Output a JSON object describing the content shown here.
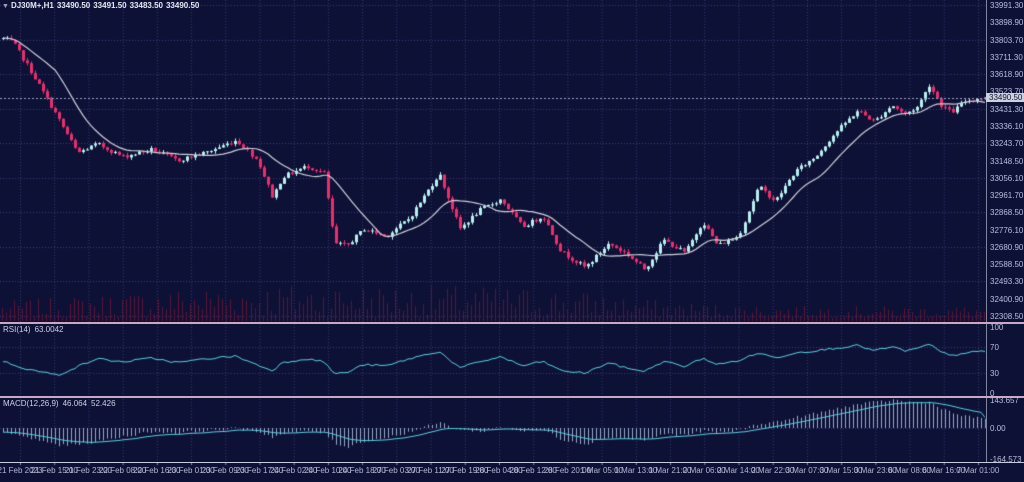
{
  "header": {
    "symbol": "DJ30M+,H1",
    "open": "33490.50",
    "high": "33491.50",
    "low": "33483.50",
    "close": "33490.50"
  },
  "panes": {
    "price": {
      "y_labels": [
        "33991.30",
        "33898.90",
        "33803.70",
        "33711.30",
        "33618.90",
        "33523.70",
        "33431.30",
        "33336.10",
        "33243.70",
        "33148.50",
        "33056.10",
        "32961.70",
        "32868.50",
        "32776.10",
        "32680.90",
        "32588.50",
        "32493.30",
        "32400.90",
        "32308.50"
      ],
      "current_price": "33490.50"
    },
    "rsi": {
      "name": "RSI(14)",
      "value": "63.0042",
      "y_labels": [
        "100",
        "70",
        "30",
        "0"
      ]
    },
    "macd": {
      "name": "MACD(12,26,9)",
      "macd_value": "46.064",
      "signal_value": "52.426",
      "y_labels": [
        "143.657",
        "0.00",
        "-164.573"
      ]
    }
  },
  "time_axis": {
    "labels": [
      "21 Feb 2023",
      "21 Feb 15:00",
      "21 Feb 23:00",
      "22 Feb 08:00",
      "22 Feb 16:00",
      "23 Feb 01:00",
      "23 Feb 09:00",
      "23 Feb 17:00",
      "24 Feb 02:00",
      "24 Feb 10:00",
      "24 Feb 18:00",
      "27 Feb 03:00",
      "27 Feb 11:00",
      "27 Feb 19:00",
      "28 Feb 04:00",
      "28 Feb 12:00",
      "28 Feb 20:00",
      "1 Mar 05:00",
      "1 Mar 13:00",
      "1 Mar 21:00",
      "2 Mar 06:00",
      "2 Mar 14:00",
      "2 Mar 22:00",
      "3 Mar 07:00",
      "3 Mar 15:00",
      "3 Mar 23:00",
      "6 Mar 08:00",
      "6 Mar 16:00",
      "7 Mar 01:00"
    ]
  },
  "colors": {
    "background": "#0e1136",
    "grid": "#343b70",
    "bull_candle": "#b9efef",
    "bear_candle": "#ea2e6d",
    "ma_line": "#cdd0da",
    "volume": "#5d1535",
    "rsi_line": "#57d0e0",
    "macd_histogram": "#96aac6",
    "macd_signal": "#57d0e0",
    "separator": "#c9a9c2",
    "axis_text": "#b9bedc",
    "price_tag_bg": "#ccd1e0",
    "current_price_line": "#979fc0"
  },
  "chart_data": [
    {
      "type": "candlestick",
      "name": "DJ30M+ price",
      "timeframe": "H1",
      "title": "DJ30M+,H1",
      "ohlc_current": {
        "open": 33490.5,
        "high": 33491.5,
        "low": 33483.5,
        "close": 33490.5
      },
      "ylim": [
        32276,
        34018
      ],
      "y_ticks": [
        33991.3,
        33898.9,
        33803.7,
        33711.3,
        33618.9,
        33523.7,
        33431.3,
        33336.1,
        33243.7,
        33148.5,
        33056.1,
        32961.7,
        32868.5,
        32776.1,
        32680.9,
        32588.5,
        32493.3,
        32400.9,
        32308.5
      ],
      "x_tick_labels": [
        "21 Feb 2023",
        "21 Feb 15:00",
        "21 Feb 23:00",
        "22 Feb 08:00",
        "22 Feb 16:00",
        "23 Feb 01:00",
        "23 Feb 09:00",
        "23 Feb 17:00",
        "24 Feb 02:00",
        "24 Feb 10:00",
        "24 Feb 18:00",
        "27 Feb 03:00",
        "27 Feb 11:00",
        "27 Feb 19:00",
        "28 Feb 04:00",
        "28 Feb 12:00",
        "28 Feb 20:00",
        "1 Mar 05:00",
        "1 Mar 13:00",
        "1 Mar 21:00",
        "2 Mar 06:00",
        "2 Mar 14:00",
        "2 Mar 22:00",
        "3 Mar 07:00",
        "3 Mar 15:00",
        "3 Mar 23:00",
        "6 Mar 08:00",
        "6 Mar 16:00",
        "7 Mar 01:00"
      ],
      "moving_average_period": 14,
      "grid": true,
      "price_path": [
        [
          0,
          33810
        ],
        [
          0.01,
          33790
        ],
        [
          0.03,
          33620
        ],
        [
          0.056,
          33380
        ],
        [
          0.076,
          33190
        ],
        [
          0.096,
          33240
        ],
        [
          0.122,
          33170
        ],
        [
          0.152,
          33210
        ],
        [
          0.178,
          33150
        ],
        [
          0.208,
          33195
        ],
        [
          0.238,
          33260
        ],
        [
          0.259,
          33150
        ],
        [
          0.274,
          32950
        ],
        [
          0.284,
          33060
        ],
        [
          0.309,
          33120
        ],
        [
          0.327,
          33080
        ],
        [
          0.337,
          32700
        ],
        [
          0.35,
          32690
        ],
        [
          0.367,
          32780
        ],
        [
          0.39,
          32740
        ],
        [
          0.414,
          32840
        ],
        [
          0.444,
          33080
        ],
        [
          0.465,
          32780
        ],
        [
          0.485,
          32880
        ],
        [
          0.507,
          32940
        ],
        [
          0.529,
          32790
        ],
        [
          0.55,
          32850
        ],
        [
          0.568,
          32660
        ],
        [
          0.593,
          32570
        ],
        [
          0.617,
          32700
        ],
        [
          0.634,
          32650
        ],
        [
          0.654,
          32560
        ],
        [
          0.673,
          32720
        ],
        [
          0.695,
          32650
        ],
        [
          0.713,
          32820
        ],
        [
          0.728,
          32690
        ],
        [
          0.749,
          32740
        ],
        [
          0.769,
          33010
        ],
        [
          0.786,
          32930
        ],
        [
          0.806,
          33090
        ],
        [
          0.827,
          33170
        ],
        [
          0.847,
          33300
        ],
        [
          0.87,
          33420
        ],
        [
          0.887,
          33360
        ],
        [
          0.905,
          33450
        ],
        [
          0.918,
          33400
        ],
        [
          0.931,
          33440
        ],
        [
          0.943,
          33560
        ],
        [
          0.955,
          33450
        ],
        [
          0.966,
          33410
        ],
        [
          0.979,
          33470
        ],
        [
          0.992,
          33485
        ],
        [
          1,
          33490.5
        ]
      ]
    },
    {
      "type": "line",
      "name": "RSI(14)",
      "current": 63.0042,
      "ylim": [
        0,
        100
      ],
      "levels": [
        30,
        70
      ],
      "points": [
        [
          0,
          48
        ],
        [
          0.025,
          36
        ],
        [
          0.056,
          27
        ],
        [
          0.076,
          40
        ],
        [
          0.096,
          52
        ],
        [
          0.122,
          47
        ],
        [
          0.152,
          53
        ],
        [
          0.178,
          46
        ],
        [
          0.208,
          52
        ],
        [
          0.238,
          56
        ],
        [
          0.259,
          42
        ],
        [
          0.274,
          34
        ],
        [
          0.284,
          46
        ],
        [
          0.309,
          52
        ],
        [
          0.327,
          47
        ],
        [
          0.337,
          29
        ],
        [
          0.35,
          31
        ],
        [
          0.367,
          43
        ],
        [
          0.39,
          41
        ],
        [
          0.414,
          52
        ],
        [
          0.444,
          63
        ],
        [
          0.465,
          38
        ],
        [
          0.485,
          47
        ],
        [
          0.507,
          55
        ],
        [
          0.529,
          41
        ],
        [
          0.55,
          48
        ],
        [
          0.568,
          34
        ],
        [
          0.593,
          30
        ],
        [
          0.617,
          46
        ],
        [
          0.634,
          38
        ],
        [
          0.654,
          33
        ],
        [
          0.673,
          48
        ],
        [
          0.695,
          40
        ],
        [
          0.713,
          53
        ],
        [
          0.728,
          43
        ],
        [
          0.749,
          49
        ],
        [
          0.769,
          61
        ],
        [
          0.786,
          53
        ],
        [
          0.806,
          61
        ],
        [
          0.827,
          64
        ],
        [
          0.847,
          68
        ],
        [
          0.87,
          72
        ],
        [
          0.887,
          64
        ],
        [
          0.905,
          70
        ],
        [
          0.918,
          64
        ],
        [
          0.931,
          67
        ],
        [
          0.943,
          74
        ],
        [
          0.955,
          62
        ],
        [
          0.966,
          56
        ],
        [
          0.979,
          61
        ],
        [
          1,
          63.0042
        ]
      ]
    },
    {
      "type": "bar",
      "name": "MACD(12,26,9)",
      "current_macd": 46.064,
      "current_signal": 52.426,
      "ylim": [
        -164.573,
        143.657
      ],
      "points": [
        [
          0,
          -18
        ],
        [
          0.03,
          -55
        ],
        [
          0.06,
          -88
        ],
        [
          0.09,
          -72
        ],
        [
          0.122,
          -42
        ],
        [
          0.152,
          -18
        ],
        [
          0.178,
          -25
        ],
        [
          0.208,
          -12
        ],
        [
          0.238,
          -2
        ],
        [
          0.259,
          -18
        ],
        [
          0.274,
          -45
        ],
        [
          0.284,
          -30
        ],
        [
          0.309,
          -14
        ],
        [
          0.327,
          -25
        ],
        [
          0.337,
          -75
        ],
        [
          0.35,
          -95
        ],
        [
          0.367,
          -65
        ],
        [
          0.39,
          -48
        ],
        [
          0.414,
          -20
        ],
        [
          0.444,
          28
        ],
        [
          0.465,
          -8
        ],
        [
          0.485,
          -18
        ],
        [
          0.507,
          6
        ],
        [
          0.529,
          -16
        ],
        [
          0.55,
          -10
        ],
        [
          0.568,
          -55
        ],
        [
          0.593,
          -80
        ],
        [
          0.617,
          -45
        ],
        [
          0.634,
          -52
        ],
        [
          0.654,
          -60
        ],
        [
          0.673,
          -30
        ],
        [
          0.695,
          -35
        ],
        [
          0.713,
          -15
        ],
        [
          0.728,
          -25
        ],
        [
          0.749,
          -12
        ],
        [
          0.769,
          22
        ],
        [
          0.786,
          30
        ],
        [
          0.806,
          52
        ],
        [
          0.827,
          72
        ],
        [
          0.847,
          95
        ],
        [
          0.87,
          118
        ],
        [
          0.887,
          128
        ],
        [
          0.905,
          140
        ],
        [
          0.918,
          132
        ],
        [
          0.931,
          126
        ],
        [
          0.943,
          128
        ],
        [
          0.955,
          100
        ],
        [
          0.966,
          75
        ],
        [
          0.979,
          58
        ],
        [
          1,
          46.064
        ]
      ]
    }
  ]
}
